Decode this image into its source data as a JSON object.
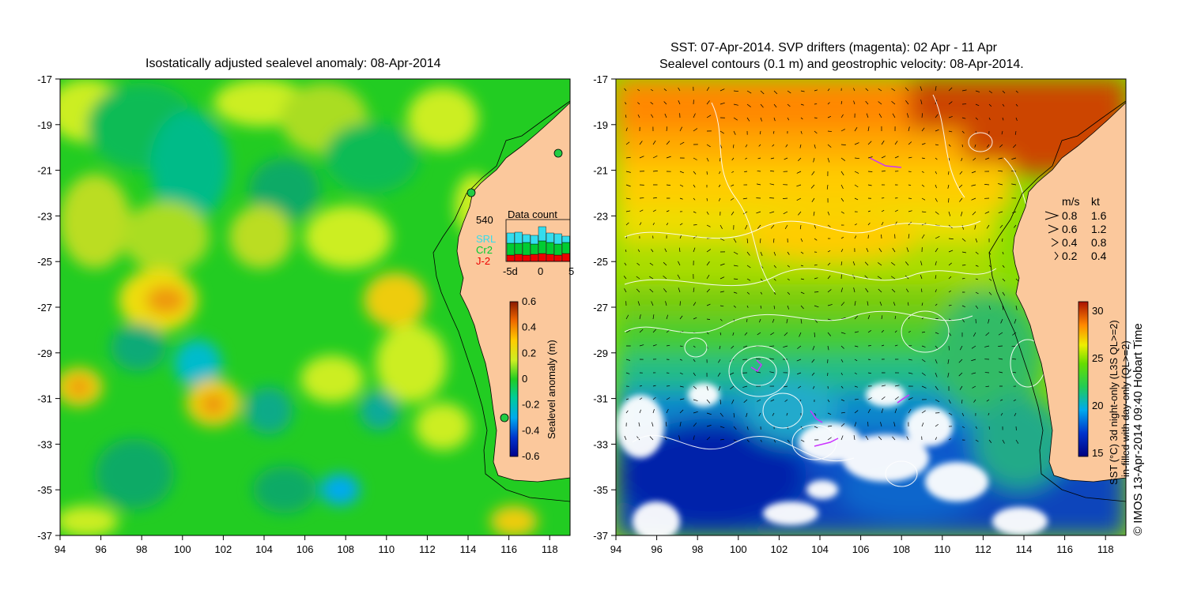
{
  "left_panel": {
    "title": "Isostatically adjusted sealevel anomaly: 08-Apr-2014",
    "x_ticks": [
      94,
      96,
      98,
      100,
      102,
      104,
      106,
      108,
      110,
      112,
      114,
      116,
      118
    ],
    "y_ticks": [
      -17,
      -19,
      -21,
      -23,
      -25,
      -27,
      -29,
      -31,
      -33,
      -35,
      -37
    ],
    "colorbar": {
      "label": "Sealevel anomaly (m)",
      "ticks": [
        "0.6",
        "0.4",
        "0.2",
        "0",
        "-0.2",
        "-0.4",
        "-0.6"
      ],
      "range": [
        -0.6,
        0.6
      ]
    },
    "data_count": {
      "title": "Data count",
      "max_label": "540",
      "series": [
        {
          "name": "SRL",
          "color": "#33ddee"
        },
        {
          "name": "Cr2",
          "color": "#00cc33"
        },
        {
          "name": "J-2",
          "color": "#ee0000"
        }
      ],
      "x_ticks": [
        "-5d",
        "0",
        "5"
      ]
    }
  },
  "right_panel": {
    "title_line1": "SST: 07-Apr-2014. SVP drifters (magenta): 02 Apr - 11 Apr",
    "title_line2": "Sealevel contours (0.1 m) and geostrophic velocity: 08-Apr-2014.",
    "x_ticks": [
      94,
      96,
      98,
      100,
      102,
      104,
      106,
      108,
      110,
      112,
      114,
      116,
      118
    ],
    "y_ticks": [
      -17,
      -19,
      -21,
      -23,
      -25,
      -27,
      -29,
      -31,
      -33,
      -35,
      -37
    ],
    "velocity_legend": {
      "header_ms": "m/s",
      "header_kt": "kt",
      "rows": [
        {
          "ms": "0.8",
          "kt": "1.6"
        },
        {
          "ms": "0.6",
          "kt": "1.2"
        },
        {
          "ms": "0.4",
          "kt": "0.8"
        },
        {
          "ms": "0.2",
          "kt": "0.4"
        }
      ]
    },
    "colorbar": {
      "label_line1": "SST (°C) 3d night-only (L3S QL>=2)",
      "label_line2": "in-filled with day-only (QL>=2)",
      "ticks": [
        "30",
        "25",
        "20",
        "15"
      ],
      "range": [
        15,
        31
      ]
    }
  },
  "copyright": "© IMOS 13-Apr-2014 09:40 Hobart Time"
}
